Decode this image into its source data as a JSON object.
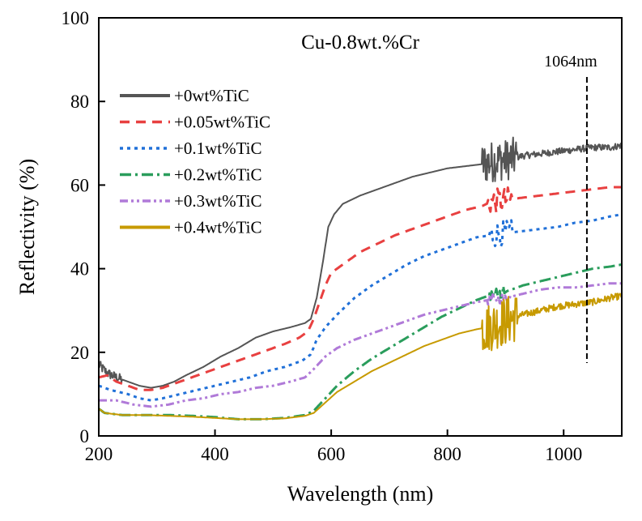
{
  "chart_data": {
    "type": "line",
    "title": "Cu-0.8wt.%Cr",
    "xlabel": "Wavelength (nm)",
    "ylabel": "Reflectivity (%)",
    "xlim": [
      200,
      1100
    ],
    "ylim": [
      0,
      100
    ],
    "xticks": [
      200,
      400,
      600,
      800,
      1000
    ],
    "yticks": [
      0,
      20,
      40,
      60,
      80,
      100
    ],
    "grid": false,
    "legend_position": "top-left",
    "annotation": {
      "label": "1064nm",
      "x": 1040
    },
    "series": [
      {
        "name": "+0wt%TiC",
        "color": "#555555",
        "dash": "solid",
        "points": [
          [
            200,
            17
          ],
          [
            215,
            15
          ],
          [
            230,
            14
          ],
          [
            250,
            13
          ],
          [
            270,
            12
          ],
          [
            290,
            11.5
          ],
          [
            310,
            12
          ],
          [
            330,
            13
          ],
          [
            350,
            14.5
          ],
          [
            380,
            16.5
          ],
          [
            410,
            19
          ],
          [
            440,
            21
          ],
          [
            470,
            23.5
          ],
          [
            500,
            25
          ],
          [
            530,
            26
          ],
          [
            555,
            27
          ],
          [
            565,
            28
          ],
          [
            575,
            33
          ],
          [
            585,
            41
          ],
          [
            595,
            50
          ],
          [
            605,
            53
          ],
          [
            620,
            55.5
          ],
          [
            650,
            57.5
          ],
          [
            680,
            59
          ],
          [
            710,
            60.5
          ],
          [
            740,
            62
          ],
          [
            770,
            63
          ],
          [
            800,
            64
          ],
          [
            830,
            64.5
          ],
          [
            860,
            65
          ],
          [
            875,
            65.5
          ],
          [
            885,
            66
          ],
          [
            900,
            66
          ],
          [
            930,
            67
          ],
          [
            960,
            67.5
          ],
          [
            990,
            68
          ],
          [
            1020,
            68.5
          ],
          [
            1050,
            69
          ],
          [
            1080,
            69
          ],
          [
            1100,
            69.5
          ]
        ],
        "noise": [
          [
            200,
            240,
            1.2
          ],
          [
            860,
            920,
            5
          ],
          [
            920,
            1100,
            0.8
          ]
        ]
      },
      {
        "name": "+0.05wt%TiC",
        "color": "#e84040",
        "dash": "12,8",
        "points": [
          [
            200,
            14
          ],
          [
            215,
            14.5
          ],
          [
            230,
            13
          ],
          [
            250,
            12
          ],
          [
            270,
            11
          ],
          [
            290,
            11
          ],
          [
            310,
            11.5
          ],
          [
            340,
            13
          ],
          [
            370,
            14.5
          ],
          [
            400,
            16
          ],
          [
            430,
            17.5
          ],
          [
            460,
            19
          ],
          [
            490,
            20.5
          ],
          [
            520,
            22
          ],
          [
            545,
            23.5
          ],
          [
            560,
            25
          ],
          [
            570,
            28
          ],
          [
            580,
            32
          ],
          [
            590,
            36
          ],
          [
            600,
            39
          ],
          [
            620,
            41
          ],
          [
            650,
            44
          ],
          [
            680,
            46
          ],
          [
            710,
            48
          ],
          [
            740,
            49.5
          ],
          [
            770,
            51
          ],
          [
            800,
            52.5
          ],
          [
            830,
            54
          ],
          [
            860,
            55
          ],
          [
            875,
            56
          ],
          [
            900,
            56.5
          ],
          [
            930,
            57
          ],
          [
            960,
            57.5
          ],
          [
            990,
            58
          ],
          [
            1020,
            58.5
          ],
          [
            1050,
            59
          ],
          [
            1080,
            59.5
          ],
          [
            1100,
            59.5
          ]
        ],
        "noise": [
          [
            870,
            910,
            3
          ]
        ]
      },
      {
        "name": "+0.1wt%TiC",
        "color": "#2070d8",
        "dash": "4,5",
        "points": [
          [
            200,
            12
          ],
          [
            220,
            11
          ],
          [
            250,
            10
          ],
          [
            270,
            9
          ],
          [
            290,
            8.5
          ],
          [
            310,
            9
          ],
          [
            340,
            10
          ],
          [
            370,
            11
          ],
          [
            400,
            12
          ],
          [
            430,
            13
          ],
          [
            460,
            14
          ],
          [
            490,
            15.5
          ],
          [
            520,
            16.5
          ],
          [
            550,
            18
          ],
          [
            565,
            19.5
          ],
          [
            575,
            23
          ],
          [
            590,
            26
          ],
          [
            610,
            29
          ],
          [
            640,
            33
          ],
          [
            670,
            36
          ],
          [
            700,
            38.5
          ],
          [
            730,
            41
          ],
          [
            760,
            43
          ],
          [
            790,
            44.5
          ],
          [
            820,
            46
          ],
          [
            850,
            47.5
          ],
          [
            875,
            48
          ],
          [
            900,
            48.5
          ],
          [
            930,
            49
          ],
          [
            960,
            49.5
          ],
          [
            990,
            50
          ],
          [
            1020,
            51
          ],
          [
            1050,
            51.5
          ],
          [
            1080,
            52.5
          ],
          [
            1100,
            53
          ]
        ],
        "noise": [
          [
            870,
            910,
            3
          ]
        ]
      },
      {
        "name": "+0.2wt%TiC",
        "color": "#2a9d5c",
        "dash": "14,5,3,5",
        "points": [
          [
            200,
            6.5
          ],
          [
            210,
            5.5
          ],
          [
            240,
            5
          ],
          [
            280,
            5
          ],
          [
            320,
            5
          ],
          [
            360,
            4.8
          ],
          [
            400,
            4.5
          ],
          [
            440,
            4
          ],
          [
            480,
            4
          ],
          [
            520,
            4.3
          ],
          [
            555,
            5
          ],
          [
            570,
            6
          ],
          [
            590,
            9
          ],
          [
            610,
            12
          ],
          [
            640,
            15.5
          ],
          [
            670,
            18.5
          ],
          [
            700,
            21
          ],
          [
            730,
            23.5
          ],
          [
            760,
            26
          ],
          [
            790,
            28.5
          ],
          [
            820,
            30.5
          ],
          [
            850,
            32.5
          ],
          [
            870,
            33.5
          ],
          [
            900,
            34.5
          ],
          [
            930,
            36
          ],
          [
            960,
            37
          ],
          [
            990,
            38
          ],
          [
            1020,
            39
          ],
          [
            1050,
            40
          ],
          [
            1080,
            40.5
          ],
          [
            1100,
            41
          ]
        ],
        "noise": [
          [
            870,
            900,
            1.5
          ]
        ]
      },
      {
        "name": "+0.3wt%TiC",
        "color": "#b07ad8",
        "dash": "10,4,3,4,3,4",
        "points": [
          [
            200,
            8.5
          ],
          [
            230,
            8.5
          ],
          [
            260,
            7.5
          ],
          [
            290,
            7
          ],
          [
            320,
            7.5
          ],
          [
            350,
            8.5
          ],
          [
            380,
            9
          ],
          [
            410,
            10
          ],
          [
            440,
            10.5
          ],
          [
            470,
            11.5
          ],
          [
            500,
            12
          ],
          [
            530,
            13
          ],
          [
            555,
            14
          ],
          [
            570,
            16
          ],
          [
            590,
            19
          ],
          [
            610,
            21
          ],
          [
            640,
            23
          ],
          [
            670,
            24.5
          ],
          [
            700,
            26
          ],
          [
            730,
            27.5
          ],
          [
            760,
            29
          ],
          [
            790,
            30
          ],
          [
            820,
            31
          ],
          [
            850,
            32
          ],
          [
            870,
            32.5
          ],
          [
            900,
            33
          ],
          [
            930,
            34
          ],
          [
            960,
            35
          ],
          [
            990,
            35.5
          ],
          [
            1020,
            35.5
          ],
          [
            1050,
            36
          ],
          [
            1080,
            36.5
          ],
          [
            1100,
            36.5
          ]
        ],
        "noise": [
          [
            870,
            910,
            1.2
          ]
        ]
      },
      {
        "name": "+0.4wt%TiC",
        "color": "#c79a00",
        "dash": "solid",
        "points": [
          [
            200,
            6.5
          ],
          [
            210,
            5.5
          ],
          [
            240,
            5
          ],
          [
            280,
            5
          ],
          [
            320,
            4.8
          ],
          [
            360,
            4.6
          ],
          [
            400,
            4.3
          ],
          [
            440,
            4
          ],
          [
            480,
            4
          ],
          [
            520,
            4.2
          ],
          [
            555,
            4.8
          ],
          [
            570,
            5.5
          ],
          [
            590,
            8
          ],
          [
            610,
            10.5
          ],
          [
            640,
            13
          ],
          [
            670,
            15.5
          ],
          [
            700,
            17.5
          ],
          [
            730,
            19.5
          ],
          [
            760,
            21.5
          ],
          [
            790,
            23
          ],
          [
            820,
            24.5
          ],
          [
            850,
            25.5
          ],
          [
            870,
            26
          ],
          [
            880,
            26.5
          ],
          [
            900,
            27.5
          ],
          [
            930,
            29
          ],
          [
            960,
            30
          ],
          [
            990,
            31
          ],
          [
            1020,
            31.5
          ],
          [
            1050,
            32
          ],
          [
            1080,
            33
          ],
          [
            1100,
            33.5
          ]
        ],
        "noise": [
          [
            860,
            920,
            6
          ],
          [
            920,
            1100,
            0.8
          ]
        ]
      }
    ]
  }
}
